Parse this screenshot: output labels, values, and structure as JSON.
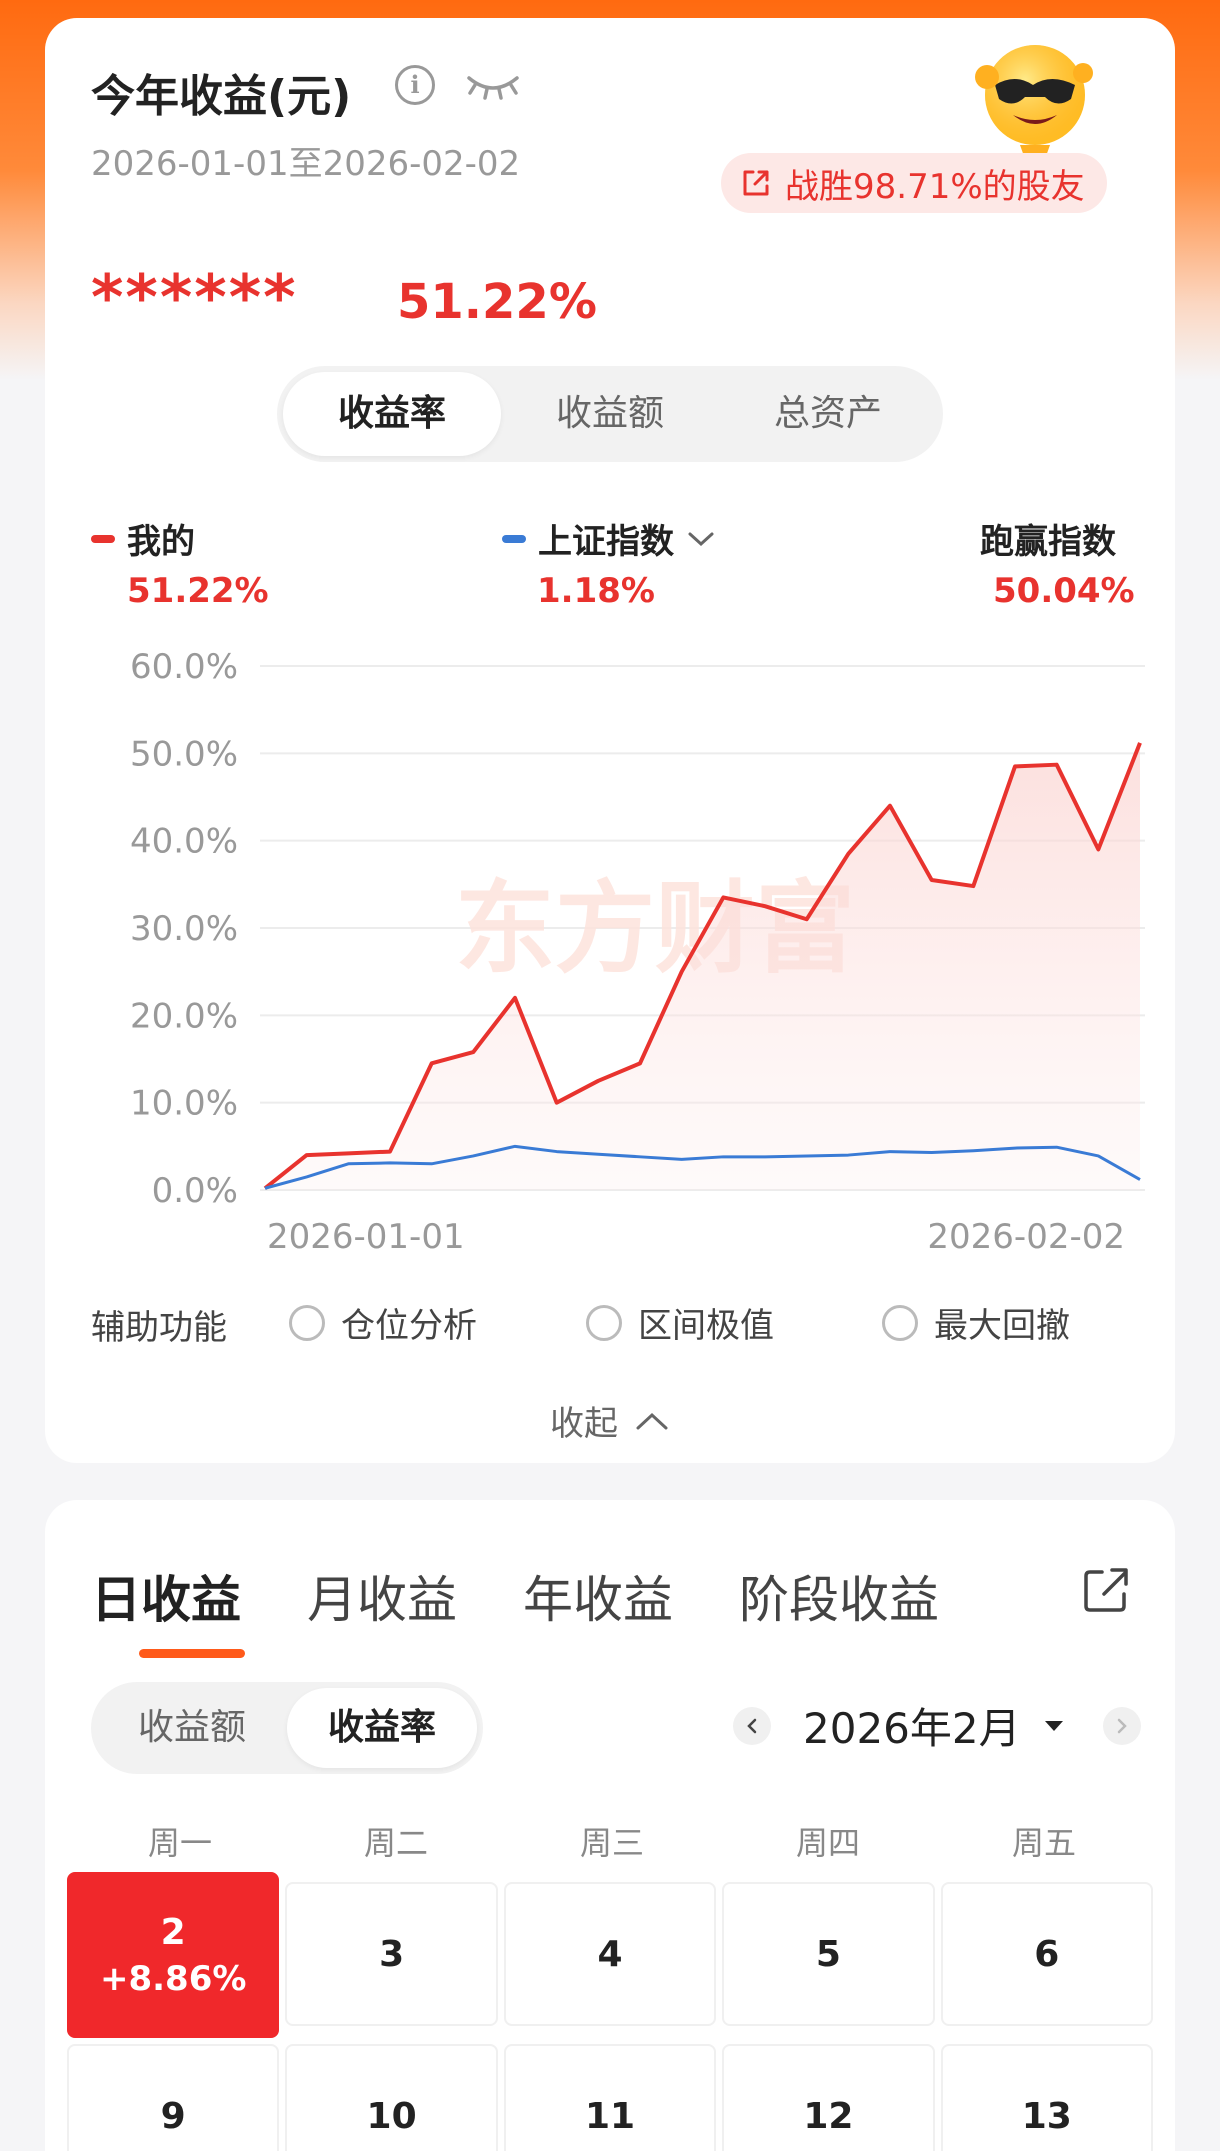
{
  "summary": {
    "title": "今年收益(元)",
    "date_range": "2026-01-01至2026-02-02",
    "beat_text": "战胜98.71%的股友",
    "hidden_value": "******",
    "return_pct": "51.22%"
  },
  "metric_tabs": [
    {
      "label": "收益率",
      "active": true
    },
    {
      "label": "收益额",
      "active": false
    },
    {
      "label": "总资产",
      "active": false
    }
  ],
  "legend": {
    "mine": {
      "label": "我的",
      "value": "51.22%",
      "color": "#e8332e"
    },
    "index": {
      "label": "上证指数",
      "value": "1.18%",
      "color": "#3a7bd5"
    },
    "excess": {
      "label": "跑赢指数",
      "value": "50.04%"
    }
  },
  "chart_data": {
    "type": "line",
    "yticks": [
      "60.0%",
      "50.0%",
      "40.0%",
      "30.0%",
      "20.0%",
      "10.0%",
      "0.0%"
    ],
    "ylim": [
      0,
      60
    ],
    "x_start_label": "2026-01-01",
    "x_end_label": "2026-02-02",
    "watermark": "东方财富",
    "series": [
      {
        "name": "我的",
        "color": "#e8332e",
        "values": [
          0.2,
          4.0,
          4.2,
          4.4,
          14.5,
          15.8,
          22.0,
          10.0,
          12.5,
          14.5,
          25.0,
          33.5,
          32.5,
          31.0,
          38.5,
          44.0,
          35.5,
          34.8,
          48.5,
          48.7,
          39.0,
          51.2
        ]
      },
      {
        "name": "上证指数",
        "color": "#3a7bd5",
        "values": [
          0.2,
          1.5,
          3.0,
          3.1,
          3.0,
          3.9,
          5.0,
          4.4,
          4.1,
          3.8,
          3.5,
          3.8,
          3.8,
          3.9,
          4.0,
          4.4,
          4.3,
          4.5,
          4.8,
          4.9,
          3.9,
          1.2
        ]
      }
    ]
  },
  "aux": {
    "label": "辅助功能",
    "options": [
      "仓位分析",
      "区间极值",
      "最大回撤"
    ],
    "collapse": "收起"
  },
  "earnings": {
    "tabs": [
      "日收益",
      "月收益",
      "年收益",
      "阶段收益"
    ],
    "mode_tabs": [
      {
        "label": "收益额",
        "active": false
      },
      {
        "label": "收益率",
        "active": true
      }
    ],
    "month": "2026年2月",
    "weekdays": [
      "周一",
      "周二",
      "周三",
      "周四",
      "周五"
    ],
    "days": [
      {
        "day": "2",
        "pct": "+8.86%"
      },
      {
        "day": "3"
      },
      {
        "day": "4"
      },
      {
        "day": "5"
      },
      {
        "day": "6"
      },
      {
        "day": "9"
      },
      {
        "day": "10"
      },
      {
        "day": "11"
      },
      {
        "day": "12"
      },
      {
        "day": "13"
      }
    ]
  }
}
